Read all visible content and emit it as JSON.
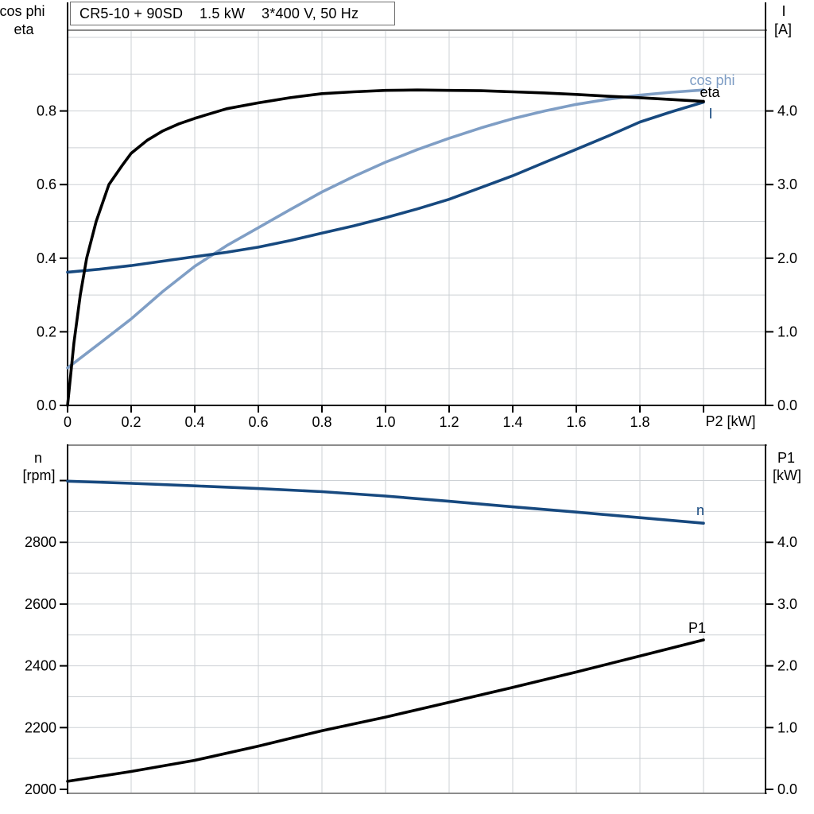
{
  "colors": {
    "black": "#000000",
    "light_blue": "#7f9ec5",
    "dark_blue": "#17497f",
    "grid": "#cdd1d5",
    "border": "#8c8c8c",
    "axis": "#000000",
    "background": "#ffffff"
  },
  "chart_data": [
    {
      "type": "line",
      "title": "CR5-10 + 90SD    1.5 kW    3*400 V, 50 Hz",
      "x_axis": {
        "label": "P2 [kW]",
        "range": [
          0,
          2.2
        ],
        "ticks": [
          {
            "v": 0,
            "t": "0"
          },
          {
            "v": 0.2,
            "t": "0.2"
          },
          {
            "v": 0.4,
            "t": "0.4"
          },
          {
            "v": 0.6,
            "t": "0.6"
          },
          {
            "v": 0.8,
            "t": "0.8"
          },
          {
            "v": 1.0,
            "t": "1.0"
          },
          {
            "v": 1.2,
            "t": "1.2"
          },
          {
            "v": 1.4,
            "t": "1.4"
          },
          {
            "v": 1.6,
            "t": "1.6"
          },
          {
            "v": 1.8,
            "t": "1.8"
          },
          {
            "v": 2.0,
            "t": ""
          }
        ]
      },
      "left_axis": {
        "line1": "cos phi",
        "line2": "eta",
        "range": [
          0,
          1.0
        ],
        "ticks": [
          {
            "v": 0.0,
            "t": "0.0"
          },
          {
            "v": 0.2,
            "t": "0.2"
          },
          {
            "v": 0.4,
            "t": "0.4"
          },
          {
            "v": 0.6,
            "t": "0.6"
          },
          {
            "v": 0.8,
            "t": "0.8"
          }
        ]
      },
      "right_axis": {
        "line1": "I",
        "line2": "[A]",
        "range": [
          0,
          5.0
        ],
        "ticks": [
          {
            "v": 0.0,
            "t": "0.0"
          },
          {
            "v": 1.0,
            "t": "1.0"
          },
          {
            "v": 2.0,
            "t": "2.0"
          },
          {
            "v": 3.0,
            "t": "3.0"
          },
          {
            "v": 4.0,
            "t": "4.0"
          }
        ]
      },
      "series": [
        {
          "name": "eta",
          "axis": "left",
          "color": "#000000",
          "points": [
            [
              0,
              0
            ],
            [
              0.02,
              0.17
            ],
            [
              0.04,
              0.3
            ],
            [
              0.06,
              0.4
            ],
            [
              0.09,
              0.5
            ],
            [
              0.13,
              0.6
            ],
            [
              0.17,
              0.65
            ],
            [
              0.2,
              0.685
            ],
            [
              0.25,
              0.72
            ],
            [
              0.3,
              0.746
            ],
            [
              0.35,
              0.765
            ],
            [
              0.4,
              0.78
            ],
            [
              0.5,
              0.806
            ],
            [
              0.6,
              0.822
            ],
            [
              0.7,
              0.836
            ],
            [
              0.8,
              0.847
            ],
            [
              0.9,
              0.852
            ],
            [
              1.0,
              0.856
            ],
            [
              1.1,
              0.857
            ],
            [
              1.2,
              0.856
            ],
            [
              1.3,
              0.855
            ],
            [
              1.4,
              0.852
            ],
            [
              1.5,
              0.849
            ],
            [
              1.6,
              0.845
            ],
            [
              1.7,
              0.84
            ],
            [
              1.8,
              0.836
            ],
            [
              1.9,
              0.831
            ],
            [
              2.0,
              0.826
            ]
          ]
        },
        {
          "name": "cos phi",
          "axis": "left",
          "color": "#7f9ec5",
          "points": [
            [
              0,
              0.102
            ],
            [
              0.1,
              0.168
            ],
            [
              0.2,
              0.235
            ],
            [
              0.3,
              0.31
            ],
            [
              0.4,
              0.378
            ],
            [
              0.5,
              0.434
            ],
            [
              0.6,
              0.483
            ],
            [
              0.7,
              0.532
            ],
            [
              0.8,
              0.58
            ],
            [
              0.9,
              0.622
            ],
            [
              1.0,
              0.661
            ],
            [
              1.1,
              0.695
            ],
            [
              1.2,
              0.726
            ],
            [
              1.3,
              0.754
            ],
            [
              1.4,
              0.779
            ],
            [
              1.5,
              0.8
            ],
            [
              1.6,
              0.818
            ],
            [
              1.7,
              0.832
            ],
            [
              1.8,
              0.843
            ],
            [
              1.9,
              0.851
            ],
            [
              2.0,
              0.857
            ]
          ]
        },
        {
          "name": "I",
          "axis": "right",
          "color": "#17497f",
          "points": [
            [
              0,
              1.81
            ],
            [
              0.1,
              1.85
            ],
            [
              0.2,
              1.9
            ],
            [
              0.3,
              1.96
            ],
            [
              0.4,
              2.02
            ],
            [
              0.5,
              2.08
            ],
            [
              0.6,
              2.15
            ],
            [
              0.7,
              2.24
            ],
            [
              0.8,
              2.34
            ],
            [
              0.9,
              2.44
            ],
            [
              1.0,
              2.55
            ],
            [
              1.1,
              2.67
            ],
            [
              1.2,
              2.8
            ],
            [
              1.3,
              2.96
            ],
            [
              1.4,
              3.12
            ],
            [
              1.5,
              3.3
            ],
            [
              1.6,
              3.48
            ],
            [
              1.7,
              3.66
            ],
            [
              1.8,
              3.85
            ],
            [
              1.9,
              3.99
            ],
            [
              2.0,
              4.12
            ]
          ]
        }
      ]
    },
    {
      "type": "line",
      "x_axis": {
        "range": [
          0,
          2.2
        ]
      },
      "left_axis": {
        "line1": "n",
        "line2": "[rpm]",
        "range": [
          2000,
          3113
        ],
        "ticks": [
          {
            "v": 2000,
            "t": "2000"
          },
          {
            "v": 2200,
            "t": "2200"
          },
          {
            "v": 2400,
            "t": "2400"
          },
          {
            "v": 2600,
            "t": "2600"
          },
          {
            "v": 2800,
            "t": "2800"
          },
          {
            "v": 3000,
            "t": ""
          }
        ]
      },
      "right_axis": {
        "line1": "P1",
        "line2": "[kW]",
        "range": [
          0,
          5.57
        ],
        "ticks": [
          {
            "v": 0.0,
            "t": "0.0"
          },
          {
            "v": 1.0,
            "t": "1.0"
          },
          {
            "v": 2.0,
            "t": "2.0"
          },
          {
            "v": 3.0,
            "t": "3.0"
          },
          {
            "v": 4.0,
            "t": "4.0"
          }
        ]
      },
      "series": [
        {
          "name": "n",
          "axis": "left",
          "color": "#17497f",
          "points": [
            [
              0,
              2998
            ],
            [
              0.2,
              2991
            ],
            [
              0.4,
              2983
            ],
            [
              0.6,
              2974
            ],
            [
              0.8,
              2964
            ],
            [
              1.0,
              2950
            ],
            [
              1.2,
              2933
            ],
            [
              1.4,
              2915
            ],
            [
              1.6,
              2898
            ],
            [
              1.8,
              2880
            ],
            [
              2.0,
              2862
            ]
          ]
        },
        {
          "name": "P1",
          "axis": "right",
          "color": "#000000",
          "points": [
            [
              0,
              0.13
            ],
            [
              0.2,
              0.29
            ],
            [
              0.4,
              0.47
            ],
            [
              0.6,
              0.7
            ],
            [
              0.8,
              0.95
            ],
            [
              1.0,
              1.17
            ],
            [
              1.2,
              1.41
            ],
            [
              1.4,
              1.65
            ],
            [
              1.6,
              1.9
            ],
            [
              1.8,
              2.16
            ],
            [
              2.0,
              2.42
            ]
          ]
        }
      ]
    }
  ]
}
